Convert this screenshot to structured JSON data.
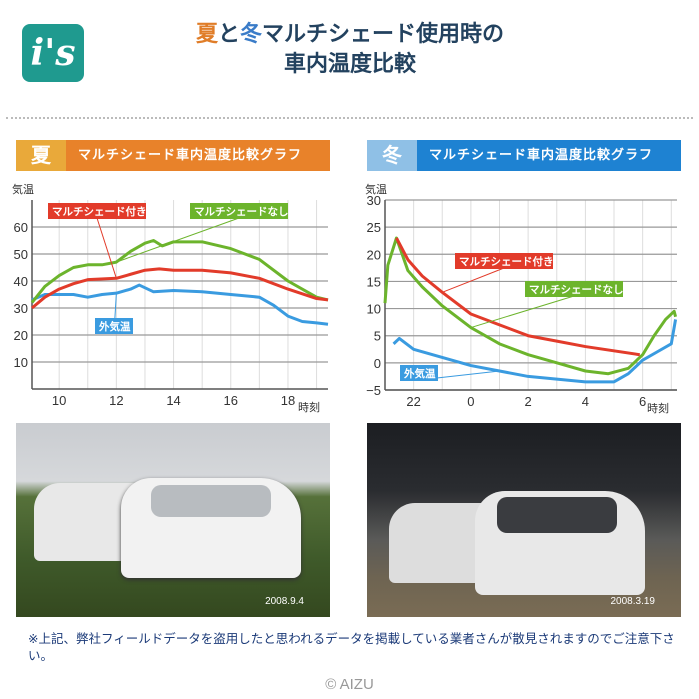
{
  "header": {
    "logo_text": "i's",
    "title_line1_summer": "夏",
    "title_line1_mid": "と",
    "title_line1_winter": "冬",
    "title_line1_rest": "マルチシェード使用時の",
    "title_line2": "車内温度比較"
  },
  "colors": {
    "summer": "#e8822a",
    "summer_badge": "#e9a93a",
    "winter": "#1e82d2",
    "winter_badge": "#8fc0e6",
    "with_shade": "#e23b2a",
    "without_shade": "#6cb42c",
    "outside": "#3a9be0"
  },
  "chart_data": [
    {
      "type": "line",
      "season": "夏",
      "title": "マルチシェード車内温度比較グラフ",
      "ylabel": "気温",
      "xlabel": "時刻",
      "xlim": [
        9.05,
        19.4
      ],
      "ylim": [
        0,
        70
      ],
      "yticks": [
        10,
        20,
        30,
        40,
        50,
        60
      ],
      "xticks": [
        10,
        12,
        14,
        16,
        18
      ],
      "xtick_labels": [
        "10",
        "12",
        "14",
        "16",
        "18"
      ],
      "grid": true,
      "series": [
        {
          "name": "マルチシェード付き",
          "color": "#e23b2a",
          "x": [
            9.05,
            9.5,
            10,
            10.5,
            11,
            12,
            12.5,
            13,
            13.5,
            14,
            15,
            16,
            17,
            18,
            19,
            19.4
          ],
          "y": [
            30,
            34,
            37,
            39,
            40.5,
            41,
            42.5,
            44,
            44.5,
            44,
            44,
            43,
            41,
            37,
            33.5,
            33
          ]
        },
        {
          "name": "マルチシェードなし",
          "color": "#6cb42c",
          "x": [
            9.05,
            9.5,
            10,
            10.5,
            11,
            11.5,
            12,
            12.5,
            13,
            13.3,
            13.6,
            14,
            15,
            16,
            17,
            18,
            19,
            19.4
          ],
          "y": [
            32,
            38,
            42,
            45,
            46,
            46,
            47,
            51,
            54,
            55,
            53,
            54.5,
            54.5,
            52,
            48,
            40,
            34,
            33
          ]
        },
        {
          "name": "外気温",
          "color": "#3a9be0",
          "x": [
            9.05,
            9.5,
            10,
            10.5,
            11,
            11.5,
            12,
            12.5,
            12.8,
            13.3,
            14,
            15,
            16,
            17,
            17.5,
            18,
            18.5,
            19,
            19.4
          ],
          "y": [
            33,
            35,
            35,
            35,
            34,
            35,
            35.5,
            37,
            38.5,
            36,
            36.5,
            36,
            35,
            34,
            31,
            27,
            25,
            24.5,
            24
          ]
        }
      ]
    },
    {
      "type": "line",
      "season": "冬",
      "title": "マルチシェード車内温度比較グラフ",
      "ylabel": "気温",
      "xlabel": "時刻",
      "xlim": [
        21,
        31.2
      ],
      "ylim": [
        -5,
        30
      ],
      "yticks": [
        -5,
        0,
        5,
        10,
        15,
        20,
        25,
        30
      ],
      "xticks": [
        22,
        24,
        26,
        28,
        30
      ],
      "xtick_labels": [
        "22",
        "0",
        "2",
        "4",
        "6"
      ],
      "grid": true,
      "series": [
        {
          "name": "マルチシェード付き",
          "color": "#e23b2a",
          "x": [
            21.4,
            21.8,
            22.3,
            23,
            24,
            25,
            26,
            27,
            28,
            29.9
          ],
          "y": [
            23,
            19,
            16,
            13,
            9,
            7,
            5,
            4,
            3,
            1.5
          ]
        },
        {
          "name": "マルチシェードなし",
          "color": "#6cb42c",
          "x": [
            21.0,
            21.1,
            21.4,
            21.8,
            22.3,
            23,
            24,
            25,
            26,
            27,
            28,
            28.8,
            29.5,
            30,
            30.4,
            30.8,
            31.1,
            31.15
          ],
          "y": [
            11,
            18,
            23,
            17,
            14,
            10.5,
            6.5,
            3.5,
            1.5,
            0,
            -1.5,
            -2,
            -1,
            1.5,
            5,
            8,
            9.5,
            8.5
          ]
        },
        {
          "name": "外気温",
          "color": "#3a9be0",
          "x": [
            21.3,
            21.5,
            22,
            23,
            24,
            25,
            26,
            27,
            28,
            29,
            29.5,
            30,
            30.5,
            31,
            31.15
          ],
          "y": [
            3.5,
            4.5,
            2.5,
            1,
            -0.5,
            -1.5,
            -2.5,
            -3,
            -3.5,
            -3.5,
            -2,
            0.5,
            2,
            3.5,
            8
          ]
        }
      ]
    }
  ],
  "photos": [
    {
      "date": "2008.9.4"
    },
    {
      "date": "2008.3.19"
    }
  ],
  "note": "※上記、弊社フィールドデータを盗用したと思われるデータを掲載している業者さんが散見されますのでご注意下さい。",
  "copyright": "© AIZU"
}
